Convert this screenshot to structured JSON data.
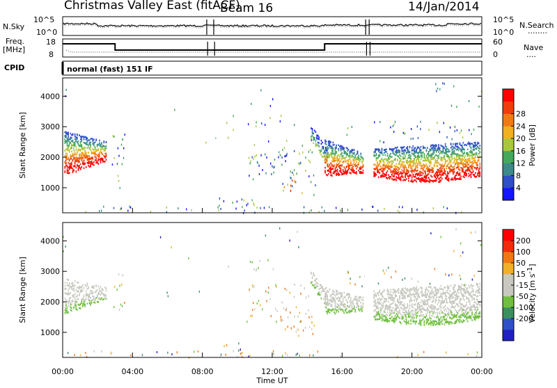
{
  "header": {
    "title": "Christmas Valley East (fitACF)",
    "beam": "Beam 16",
    "date": "14/Jan/2014",
    "mode": "normal (fast) 151 IF"
  },
  "left_labels": {
    "nsky": "N.Sky",
    "freq": "Freq.",
    "mhz": "[MHz]",
    "cpid": "CPID"
  },
  "right_labels": {
    "nsearch": "N.Search",
    "nave": "Nave",
    "dots": "........",
    "dots2": "...."
  },
  "noise_ticks": {
    "left": [
      "10^5",
      "10^0"
    ],
    "right": [
      "10^5",
      "10^0"
    ]
  },
  "freq_ticks": {
    "left": [
      "18",
      "8"
    ],
    "right": [
      "60",
      "0"
    ]
  },
  "chart_data": [
    {
      "type": "heatmap",
      "panel": "power",
      "xlabel": "Time UT",
      "ylabel": "Slant Range [km]",
      "x_ticks": [
        "00:00",
        "04:00",
        "08:00",
        "12:00",
        "16:00",
        "20:00",
        "00:00"
      ],
      "y_ticks": [
        "1000",
        "2000",
        "3000",
        "4000"
      ],
      "ylim": [
        180,
        4600
      ],
      "colorbar": {
        "label": "Power [dB]",
        "ticks": [
          "4",
          "8",
          "12",
          "16",
          "20",
          "24",
          "28"
        ],
        "colors": [
          "#1414ff",
          "#2e4fc8",
          "#3d8a8a",
          "#44a85a",
          "#a8c83c",
          "#f0b020",
          "#f07a14",
          "#f03c0a",
          "#ff0000"
        ]
      }
    },
    {
      "type": "heatmap",
      "panel": "velocity",
      "xlabel": "Time UT",
      "ylabel": "Slant Range [km]",
      "x_ticks": [
        "00:00",
        "04:00",
        "08:00",
        "12:00",
        "16:00",
        "20:00",
        "00:00"
      ],
      "y_ticks": [
        "1000",
        "2000",
        "3000",
        "4000"
      ],
      "ylim": [
        180,
        4600
      ],
      "colorbar": {
        "label": "Velocity [m s",
        "label_sup": "-1",
        "ticks": [
          "200",
          "100",
          "50",
          "15",
          "-15",
          "-50",
          "-100",
          "-200"
        ],
        "colors": [
          "#2020c0",
          "#3050c8",
          "#3c9060",
          "#70c040",
          "#c8c8c0",
          "#c8c8c0",
          "#f0b028",
          "#f07814",
          "#f02c0a",
          "#ff0000"
        ]
      }
    }
  ]
}
